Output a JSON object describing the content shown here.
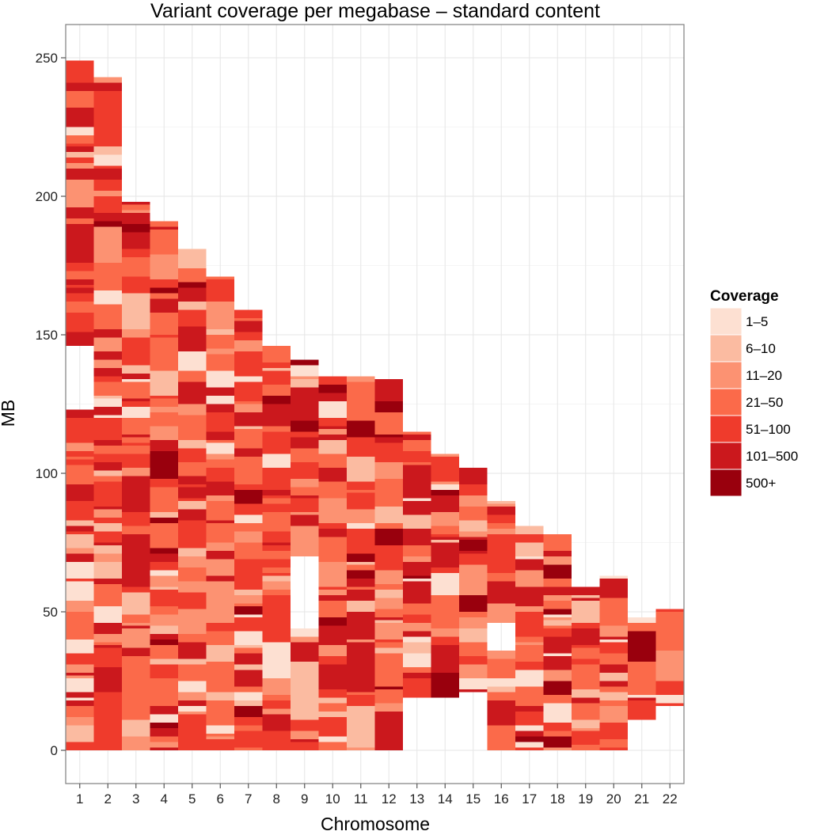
{
  "chart_data": {
    "type": "heatmap",
    "title": "Variant coverage per megabase – standard content",
    "xlabel": "Chromosome",
    "ylabel": "MB",
    "ylim": [
      -12,
      262
    ],
    "yticks": [
      0,
      50,
      100,
      150,
      200,
      250
    ],
    "categories": [
      "1",
      "2",
      "3",
      "4",
      "5",
      "6",
      "7",
      "8",
      "9",
      "10",
      "11",
      "12",
      "13",
      "14",
      "15",
      "16",
      "17",
      "18",
      "19",
      "20",
      "21",
      "22"
    ],
    "grid": true,
    "legend": {
      "title": "Coverage",
      "position": "right",
      "bins": [
        "1–5",
        "6–10",
        "11–20",
        "21–50",
        "51–100",
        "101–500",
        "500+"
      ],
      "colors": [
        "#fde0d2",
        "#fbbba1",
        "#fc9272",
        "#fb6a4a",
        "#ef3b2c",
        "#cb181d",
        "#99000d"
      ]
    },
    "chromosomes": [
      {
        "name": "1",
        "length_mb": 249,
        "seed": 11,
        "gaps": [
          [
            121,
            145
          ]
        ],
        "notes_mb": [
          [
            0,
            1
          ]
        ]
      },
      {
        "name": "2",
        "length_mb": 243,
        "seed": 23,
        "gaps": []
      },
      {
        "name": "3",
        "length_mb": 198,
        "seed": 37,
        "gaps": []
      },
      {
        "name": "4",
        "length_mb": 191,
        "seed": 41,
        "gaps": []
      },
      {
        "name": "5",
        "length_mb": 181,
        "seed": 53,
        "gaps": []
      },
      {
        "name": "6",
        "length_mb": 171,
        "seed": 67,
        "gaps": []
      },
      {
        "name": "7",
        "length_mb": 159,
        "seed": 71,
        "gaps": []
      },
      {
        "name": "8",
        "length_mb": 146,
        "seed": 83,
        "gaps": []
      },
      {
        "name": "9",
        "length_mb": 141,
        "seed": 97,
        "gaps": [
          [
            44,
            68
          ]
        ]
      },
      {
        "name": "10",
        "length_mb": 135,
        "seed": 103,
        "gaps": []
      },
      {
        "name": "11",
        "length_mb": 135,
        "seed": 113,
        "gaps": []
      },
      {
        "name": "12",
        "length_mb": 134,
        "seed": 127,
        "gaps": []
      },
      {
        "name": "13",
        "length_mb": 115,
        "start_mb": 19,
        "seed": 131,
        "gaps": []
      },
      {
        "name": "14",
        "length_mb": 107,
        "start_mb": 19,
        "seed": 139,
        "gaps": []
      },
      {
        "name": "15",
        "length_mb": 102,
        "start_mb": 21,
        "seed": 149,
        "gaps": []
      },
      {
        "name": "16",
        "length_mb": 90,
        "seed": 157,
        "gaps": [
          [
            36,
            46
          ]
        ]
      },
      {
        "name": "17",
        "length_mb": 81,
        "seed": 163,
        "gaps": []
      },
      {
        "name": "18",
        "length_mb": 78,
        "seed": 173,
        "gaps": []
      },
      {
        "name": "19",
        "length_mb": 59,
        "seed": 179,
        "gaps": []
      },
      {
        "name": "20",
        "length_mb": 63,
        "seed": 191,
        "gaps": []
      },
      {
        "name": "21",
        "length_mb": 48,
        "start_mb": 11,
        "seed": 197,
        "gaps": []
      },
      {
        "name": "22",
        "length_mb": 51,
        "start_mb": 16,
        "seed": 211,
        "gaps": []
      }
    ],
    "level_weights": [
      0.07,
      0.07,
      0.14,
      0.24,
      0.22,
      0.22,
      0.04
    ]
  }
}
